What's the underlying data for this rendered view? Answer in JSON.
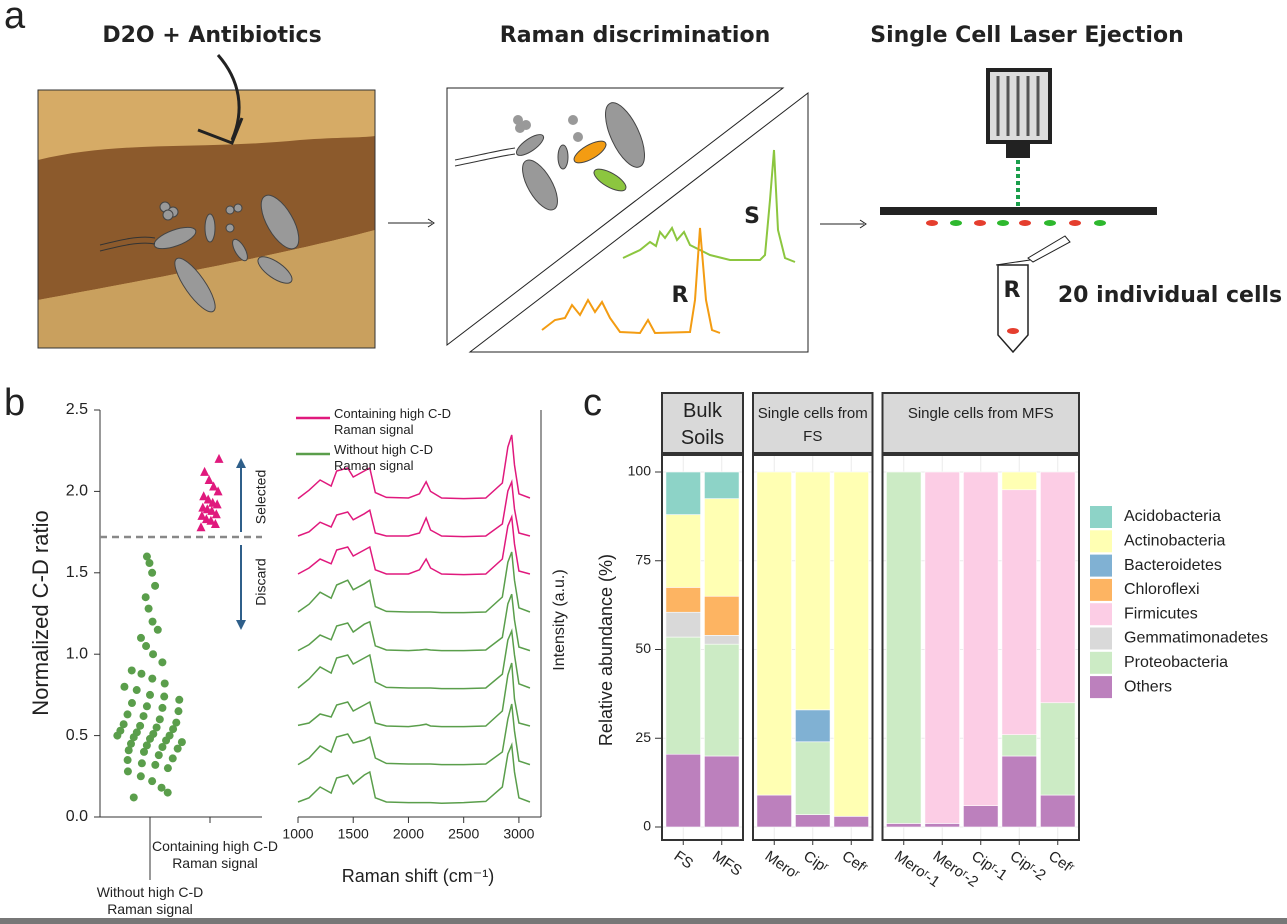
{
  "panel_a": {
    "label": "a",
    "steps": [
      "D2O + Antibiotics",
      "Raman discrimination",
      "Single Cell Laser Ejection"
    ],
    "spectrum_labels": [
      "S",
      "R"
    ],
    "tube_label": "R",
    "cells_note": "20 individual cells"
  },
  "panel_labels": [
    "b",
    "c"
  ],
  "chart_data": [
    {
      "type": "strip",
      "y_label": "Normalized C-D ratio",
      "ylim": [
        0,
        2.5
      ],
      "yticks": [
        {
          "value": 0,
          "label": "0.0"
        },
        {
          "value": 0.5,
          "label": "0.5"
        },
        {
          "value": 1,
          "label": "1.0"
        },
        {
          "value": 1.5,
          "label": "1.5"
        },
        {
          "value": 2,
          "label": "2.0"
        },
        {
          "value": 2.5,
          "label": "2.5"
        }
      ],
      "threshold": 1.72,
      "annotations": [
        "Selected",
        "Discard"
      ],
      "groups": [
        {
          "name": "Without high C-D Raman signal",
          "color": "#5a9e4b",
          "marker": "circle",
          "values": [
            0.12,
            0.18,
            0.22,
            0.25,
            0.28,
            0.3,
            0.32,
            0.33,
            0.35,
            0.36,
            0.38,
            0.4,
            0.41,
            0.42,
            0.43,
            0.44,
            0.45,
            0.46,
            0.47,
            0.48,
            0.49,
            0.5,
            0.5,
            0.51,
            0.52,
            0.53,
            0.54,
            0.55,
            0.56,
            0.57,
            0.58,
            0.6,
            0.62,
            0.63,
            0.65,
            0.67,
            0.68,
            0.7,
            0.72,
            0.74,
            0.75,
            0.78,
            0.8,
            0.82,
            0.85,
            0.88,
            0.9,
            0.95,
            1.0,
            1.05,
            1.1,
            1.15,
            1.2,
            1.28,
            1.35,
            1.42,
            1.5,
            1.56,
            1.6,
            0.15
          ]
        },
        {
          "name": "Containing high C-D Raman signal",
          "color": "#e0197d",
          "marker": "triangle",
          "values": [
            1.78,
            1.8,
            1.82,
            1.83,
            1.85,
            1.86,
            1.88,
            1.89,
            1.9,
            1.92,
            1.93,
            1.95,
            1.97,
            2.0,
            2.03,
            2.07,
            2.12,
            2.2
          ]
        }
      ]
    },
    {
      "type": "spectra",
      "x_label": "Raman shift (cm⁻¹)",
      "y_label": "Intensity (a.u.)",
      "xlim": [
        1000,
        3200
      ],
      "xticks": [
        1000,
        1500,
        2000,
        2500,
        3000
      ],
      "x": [
        1000,
        1100,
        1200,
        1300,
        1350,
        1450,
        1500,
        1600,
        1650,
        1700,
        1800,
        2000,
        2100,
        2160,
        2200,
        2300,
        2500,
        2700,
        2850,
        2900,
        2935,
        2960,
        3000,
        3100
      ],
      "groups": [
        {
          "name": "Containing high C-D Raman signal",
          "color": "#e0197d",
          "spectra": [
            [
              0.05,
              0.15,
              0.3,
              0.22,
              0.45,
              0.5,
              0.35,
              0.45,
              0.5,
              0.12,
              0.05,
              0.05,
              0.12,
              0.3,
              0.15,
              0.05,
              0.04,
              0.05,
              0.3,
              0.85,
              1.0,
              0.55,
              0.1,
              0.05
            ],
            [
              0.05,
              0.12,
              0.28,
              0.2,
              0.4,
              0.45,
              0.32,
              0.42,
              0.48,
              0.1,
              0.05,
              0.05,
              0.1,
              0.35,
              0.15,
              0.05,
              0.04,
              0.05,
              0.25,
              0.8,
              0.95,
              0.5,
              0.1,
              0.05
            ],
            [
              0.04,
              0.18,
              0.35,
              0.25,
              0.5,
              0.55,
              0.4,
              0.5,
              0.55,
              0.14,
              0.06,
              0.05,
              0.12,
              0.32,
              0.16,
              0.05,
              0.04,
              0.05,
              0.3,
              0.9,
              1.1,
              0.6,
              0.12,
              0.05
            ]
          ]
        },
        {
          "name": "Without high C-D Raman signal",
          "color": "#5a9e4b",
          "spectra": [
            [
              0.05,
              0.12,
              0.3,
              0.2,
              0.45,
              0.5,
              0.35,
              0.5,
              0.55,
              0.12,
              0.05,
              0.04,
              0.04,
              0.04,
              0.04,
              0.03,
              0.04,
              0.06,
              0.3,
              0.85,
              1.0,
              0.55,
              0.12,
              0.05
            ],
            [
              0.04,
              0.15,
              0.35,
              0.25,
              0.5,
              0.55,
              0.4,
              0.45,
              0.5,
              0.15,
              0.06,
              0.05,
              0.05,
              0.05,
              0.05,
              0.04,
              0.04,
              0.05,
              0.25,
              0.8,
              1.05,
              0.6,
              0.1,
              0.04
            ],
            [
              0.06,
              0.1,
              0.25,
              0.2,
              0.4,
              0.45,
              0.3,
              0.4,
              0.45,
              0.1,
              0.05,
              0.04,
              0.06,
              0.08,
              0.05,
              0.04,
              0.04,
              0.05,
              0.3,
              0.9,
              1.1,
              0.5,
              0.1,
              0.05
            ],
            [
              0.05,
              0.2,
              0.4,
              0.3,
              0.55,
              0.6,
              0.45,
              0.55,
              0.6,
              0.15,
              0.06,
              0.05,
              0.05,
              0.05,
              0.05,
              0.04,
              0.04,
              0.05,
              0.28,
              0.85,
              1.0,
              0.6,
              0.12,
              0.05
            ],
            [
              0.04,
              0.14,
              0.3,
              0.22,
              0.45,
              0.5,
              0.35,
              0.48,
              0.52,
              0.12,
              0.05,
              0.04,
              0.05,
              0.06,
              0.05,
              0.04,
              0.04,
              0.05,
              0.26,
              0.82,
              0.98,
              0.55,
              0.1,
              0.04
            ],
            [
              0.05,
              0.18,
              0.38,
              0.28,
              0.5,
              0.58,
              0.42,
              0.52,
              0.58,
              0.14,
              0.06,
              0.05,
              0.05,
              0.05,
              0.05,
              0.04,
              0.04,
              0.05,
              0.3,
              0.88,
              1.05,
              0.58,
              0.12,
              0.05
            ]
          ]
        }
      ]
    },
    {
      "type": "stacked_bar",
      "y_label": "Relative abundance (%)",
      "ylim": [
        0,
        100
      ],
      "yticks": [
        0,
        25,
        50,
        75,
        100
      ],
      "grid": true,
      "facets": [
        {
          "title": "Bulk Soils",
          "categories": [
            "FS",
            "MFS"
          ]
        },
        {
          "title": "Single cells from FS",
          "categories": [
            "Meroʳ",
            "Cipʳ",
            "Cefʳ"
          ]
        },
        {
          "title": "Single cells from MFS",
          "categories": [
            "Meroʳ-1",
            "Meroʳ-2",
            "Cipʳ-1",
            "Cipʳ-2",
            "Cefʳ"
          ]
        }
      ],
      "series": [
        {
          "name": "Acidobacteria",
          "color": "#8dd3c7",
          "values": [
            12,
            7.5,
            0,
            0,
            0,
            0,
            0,
            0,
            0,
            0
          ]
        },
        {
          "name": "Actinobacteria",
          "color": "#ffffb3",
          "values": [
            20.5,
            27.5,
            91,
            67,
            97,
            0,
            0,
            0,
            5,
            0
          ]
        },
        {
          "name": "Bacteroidetes",
          "color": "#80b1d3",
          "values": [
            0,
            0,
            0,
            9,
            0,
            0,
            0,
            0,
            0,
            0
          ]
        },
        {
          "name": "Chloroflexi",
          "color": "#fdb462",
          "values": [
            7,
            11,
            0,
            0,
            0,
            0,
            0,
            0,
            0,
            0
          ]
        },
        {
          "name": "Firmicutes",
          "color": "#fccde5",
          "values": [
            0,
            0,
            0,
            0,
            0,
            0,
            99,
            94,
            69,
            65
          ]
        },
        {
          "name": "Gemmatimonadetes",
          "color": "#d9d9d9",
          "values": [
            7,
            2.5,
            0,
            0,
            0,
            0,
            0,
            0,
            0,
            0
          ]
        },
        {
          "name": "Proteobacteria",
          "color": "#ccebc5",
          "values": [
            33,
            31.5,
            0,
            20.5,
            0,
            99,
            0,
            0,
            6,
            26
          ]
        },
        {
          "name": "Others",
          "color": "#bc80bd",
          "values": [
            20.5,
            20,
            9,
            3.5,
            3,
            1,
            1,
            6,
            20,
            9
          ]
        }
      ]
    }
  ]
}
